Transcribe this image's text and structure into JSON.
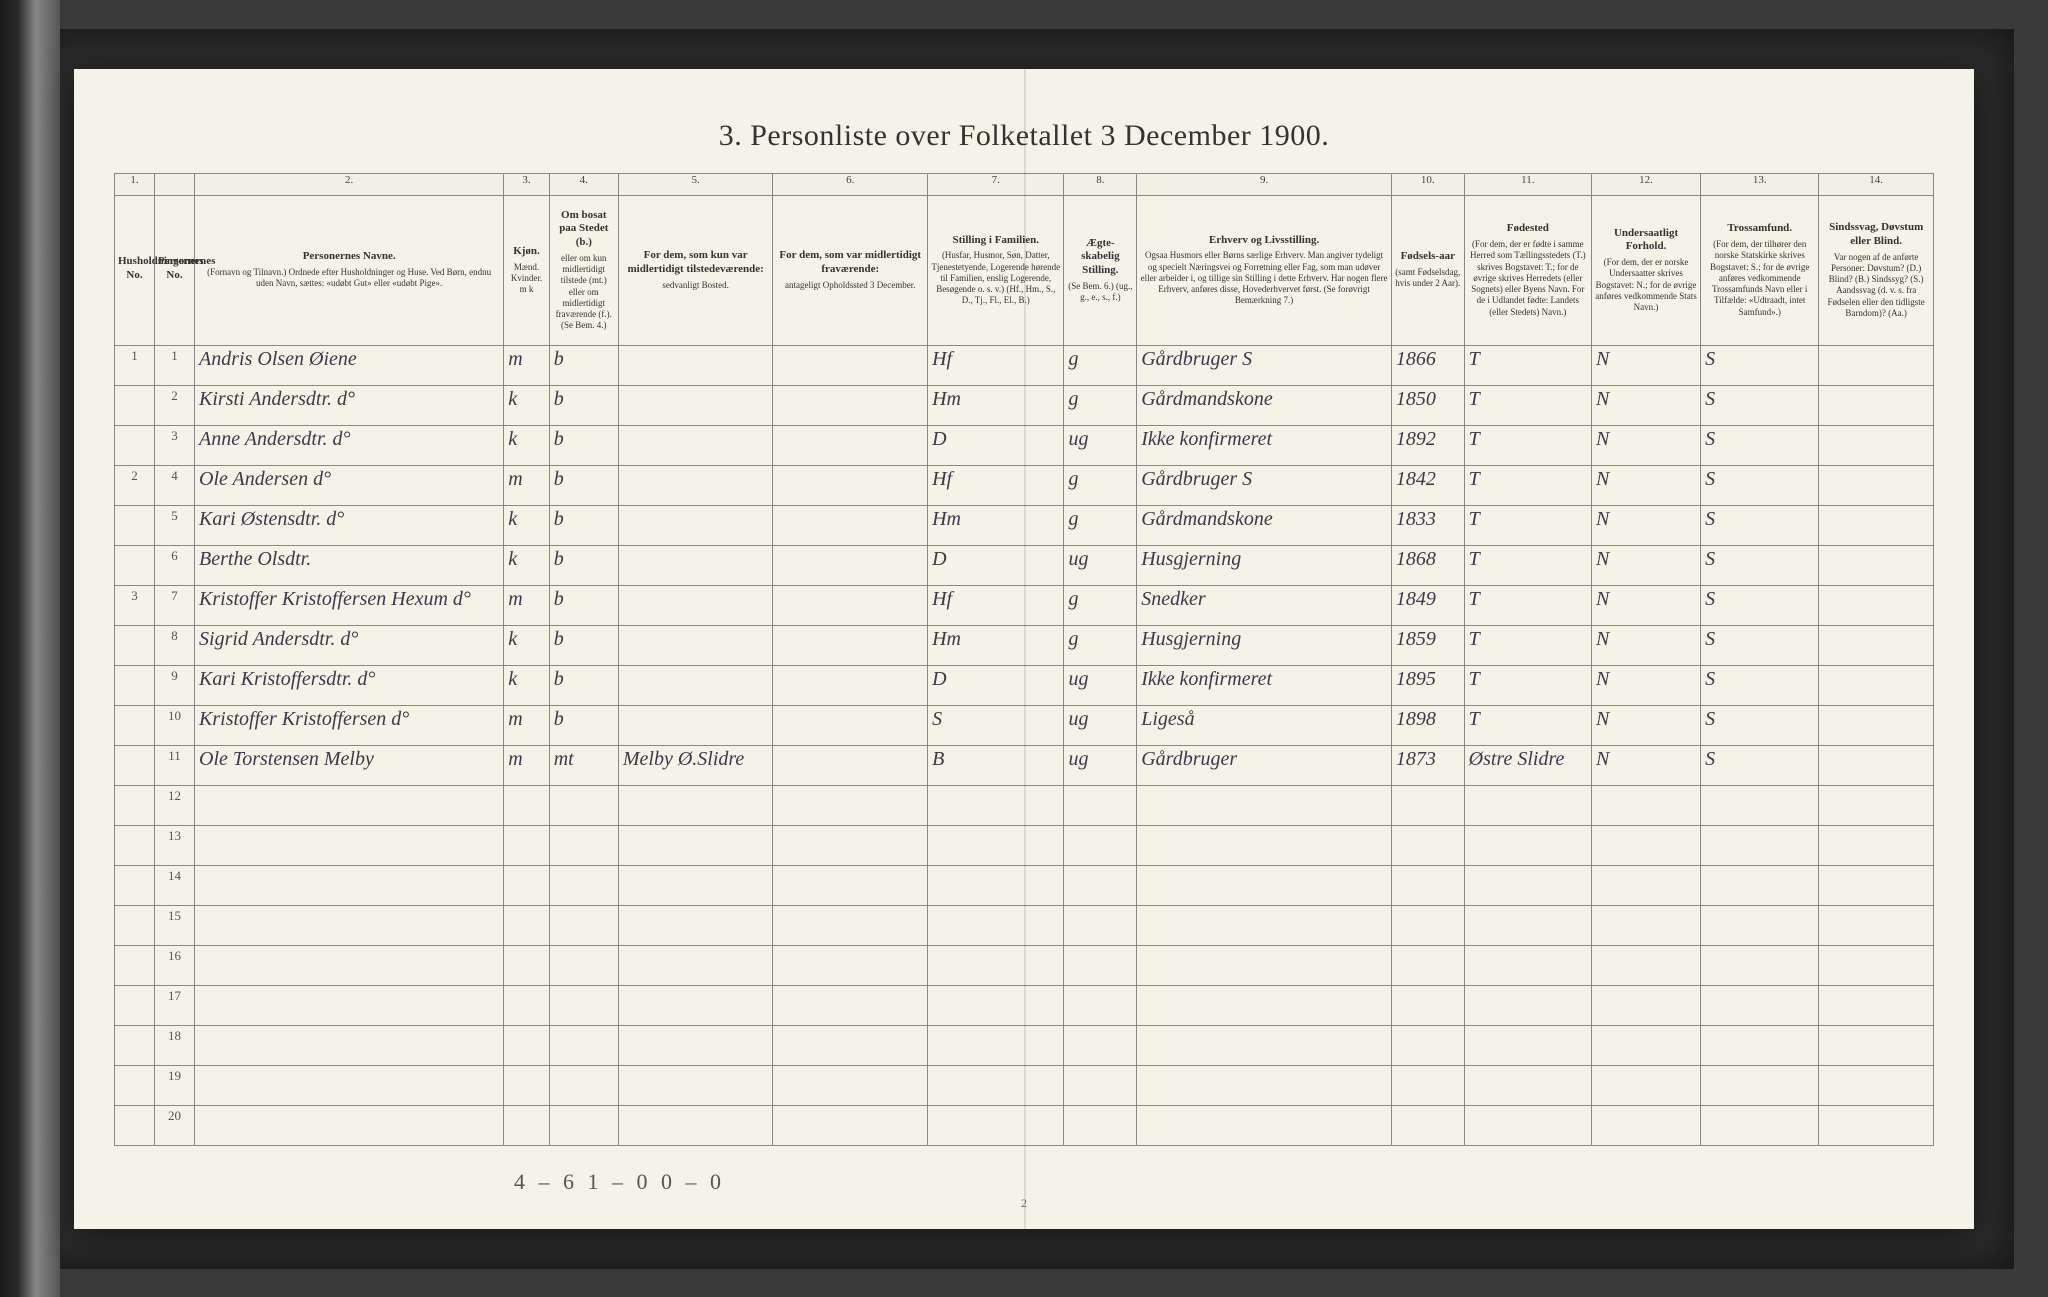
{
  "title": "3.  Personliste over Folketallet 3 December 1900.",
  "page_number": "2",
  "footer_tally": "4 – 6    1 – 0    0 – 0",
  "columns": {
    "nums": [
      "1.",
      "",
      "2.",
      "3.",
      "4.",
      "5.",
      "6.",
      "7.",
      "8.",
      "9.",
      "10.",
      "11.",
      "12.",
      "13.",
      "14."
    ],
    "heads": [
      {
        "main": "Husholdningernes No.",
        "sub": ""
      },
      {
        "main": "Personernes No.",
        "sub": ""
      },
      {
        "main": "Personernes Navne.",
        "sub": "(Fornavn og Tilnavn.) Ordnede efter Husholdninger og Huse. Ved Børn, endnu uden Navn, sættes: «udøbt Gut» eller «udøbt Pige»."
      },
      {
        "main": "Kjøn.",
        "sub": "Mænd. Kvinder. m  k"
      },
      {
        "main": "Om bosat paa Stedet (b.)",
        "sub": "eller om kun midlertidigt tilstede (mt.) eller om midlertidigt fraværende (f.). (Se Bem. 4.)"
      },
      {
        "main": "For dem, som kun var midlertidigt tilstedeværende:",
        "sub": "sedvanligt Bosted."
      },
      {
        "main": "For dem, som var midlertidigt fraværende:",
        "sub": "antageligt Opholdssted 3 December."
      },
      {
        "main": "Stilling i Familien.",
        "sub": "(Husfar, Husmor, Søn, Datter, Tjenestetyende, Logerende hørende til Familien, enslig Logerende, Besøgende o. s. v.) (Hf., Hm., S., D., Tj., Fl., El., B.)"
      },
      {
        "main": "Ægte-skabelig Stilling.",
        "sub": "(Se Bem. 6.) (ug., g., e., s., f.)"
      },
      {
        "main": "Erhverv og Livsstilling.",
        "sub": "Ogsaa Husmors eller Børns særlige Erhverv. Man angiver tydeligt og specielt Næringsvei og Forretning eller Fag, som man udøver eller arbeider i, og tillige sin Stilling i dette Erhverv. Har nogen flere Erhverv, anføres disse, Hovederhvervet først. (Se forøvrigt Bemærkning 7.)"
      },
      {
        "main": "Fødsels-aar",
        "sub": "(samt Fødselsdag, hvis under 2 Aar)."
      },
      {
        "main": "Fødested",
        "sub": "(For dem, der er fødte i samme Herred som Tællingsstedets (T.) skrives Bogstavet: T.; for de øvrige skrives Herredets (eller Sognets) eller Byens Navn. For de i Udlandet fødte: Landets (eller Stedets) Navn.)"
      },
      {
        "main": "Undersaatligt Forhold.",
        "sub": "(For dem, der er norske Undersaatter skrives Bogstavet: N.; for de øvrige anføres vedkommende Stats Navn.)"
      },
      {
        "main": "Trossamfund.",
        "sub": "(For dem, der tilhører den norske Statskirke skrives Bogstavet: S.; for de øvrige anføres vedkommende Trossamfunds Navn eller i Tilfælde: «Udtraadt, intet Samfund».)"
      },
      {
        "main": "Sindssvag, Døvstum eller Blind.",
        "sub": "Var nogen af de anførte Personer: Døvstum? (D.) Blind? (B.) Sindssyg? (S.) Aandssvag (d. v. s. fra Fødselen eller den tidligste Barndom)? (Aa.)"
      }
    ]
  },
  "rows": [
    {
      "hh": "1",
      "pn": "1",
      "name": "Andris Olsen Øiene",
      "sex": "m",
      "res": "b",
      "c5": "",
      "c6": "",
      "fam": "Hf",
      "mar": "g",
      "occ": "Gårdbruger  S",
      "year": "1866",
      "born": "T",
      "nat": "N",
      "rel": "S",
      "c14": ""
    },
    {
      "hh": "",
      "pn": "2",
      "name": "Kirsti Andersdtr. d°",
      "sex": "k",
      "res": "b",
      "c5": "",
      "c6": "",
      "fam": "Hm",
      "mar": "g",
      "occ": "Gårdmandskone",
      "year": "1850",
      "born": "T",
      "nat": "N",
      "rel": "S",
      "c14": ""
    },
    {
      "hh": "",
      "pn": "3",
      "name": "Anne Andersdtr. d°",
      "sex": "k",
      "res": "b",
      "c5": "",
      "c6": "",
      "fam": "D",
      "mar": "ug",
      "occ": "Ikke konfirmeret",
      "year": "1892",
      "born": "T",
      "nat": "N",
      "rel": "S",
      "c14": ""
    },
    {
      "hh": "2",
      "pn": "4",
      "name": "Ole Andersen d°",
      "sex": "m",
      "res": "b",
      "c5": "",
      "c6": "",
      "fam": "Hf",
      "mar": "g",
      "occ": "Gårdbruger  S",
      "year": "1842",
      "born": "T",
      "nat": "N",
      "rel": "S",
      "c14": ""
    },
    {
      "hh": "",
      "pn": "5",
      "name": "Kari Østensdtr. d°",
      "sex": "k",
      "res": "b",
      "c5": "",
      "c6": "",
      "fam": "Hm",
      "mar": "g",
      "occ": "Gårdmandskone",
      "year": "1833",
      "born": "T",
      "nat": "N",
      "rel": "S",
      "c14": ""
    },
    {
      "hh": "",
      "pn": "6",
      "name": "Berthe Olsdtr.",
      "sex": "k",
      "res": "b",
      "c5": "",
      "c6": "",
      "fam": "D",
      "mar": "ug",
      "occ": "Husgjerning",
      "year": "1868",
      "born": "T",
      "nat": "N",
      "rel": "S",
      "c14": ""
    },
    {
      "hh": "3",
      "pn": "7",
      "name": "Kristoffer Kristoffersen Hexum d°",
      "sex": "m",
      "res": "b",
      "c5": "",
      "c6": "",
      "fam": "Hf",
      "mar": "g",
      "occ": "Snedker",
      "year": "1849",
      "born": "T",
      "nat": "N",
      "rel": "S",
      "c14": ""
    },
    {
      "hh": "",
      "pn": "8",
      "name": "Sigrid Andersdtr. d°",
      "sex": "k",
      "res": "b",
      "c5": "",
      "c6": "",
      "fam": "Hm",
      "mar": "g",
      "occ": "Husgjerning",
      "year": "1859",
      "born": "T",
      "nat": "N",
      "rel": "S",
      "c14": ""
    },
    {
      "hh": "",
      "pn": "9",
      "name": "Kari Kristoffersdtr. d°",
      "sex": "k",
      "res": "b",
      "c5": "",
      "c6": "",
      "fam": "D",
      "mar": "ug",
      "occ": "Ikke konfirmeret",
      "year": "1895",
      "born": "T",
      "nat": "N",
      "rel": "S",
      "c14": ""
    },
    {
      "hh": "",
      "pn": "10",
      "name": "Kristoffer Kristoffersen d°",
      "sex": "m",
      "res": "b",
      "c5": "",
      "c6": "",
      "fam": "S",
      "mar": "ug",
      "occ": "Ligeså",
      "year": "1898",
      "born": "T",
      "nat": "N",
      "rel": "S",
      "c14": ""
    },
    {
      "hh": "",
      "pn": "11",
      "name": "Ole Torstensen Melby",
      "sex": "m",
      "res": "mt",
      "c5": "Melby Ø.Slidre",
      "c6": "",
      "fam": "B",
      "mar": "ug",
      "occ": "Gårdbruger",
      "year": "1873",
      "born": "Østre Slidre",
      "nat": "N",
      "rel": "S",
      "c14": ""
    }
  ],
  "empty_row_labels": [
    "12",
    "13",
    "14",
    "15",
    "16",
    "17",
    "18",
    "19",
    "20"
  ]
}
